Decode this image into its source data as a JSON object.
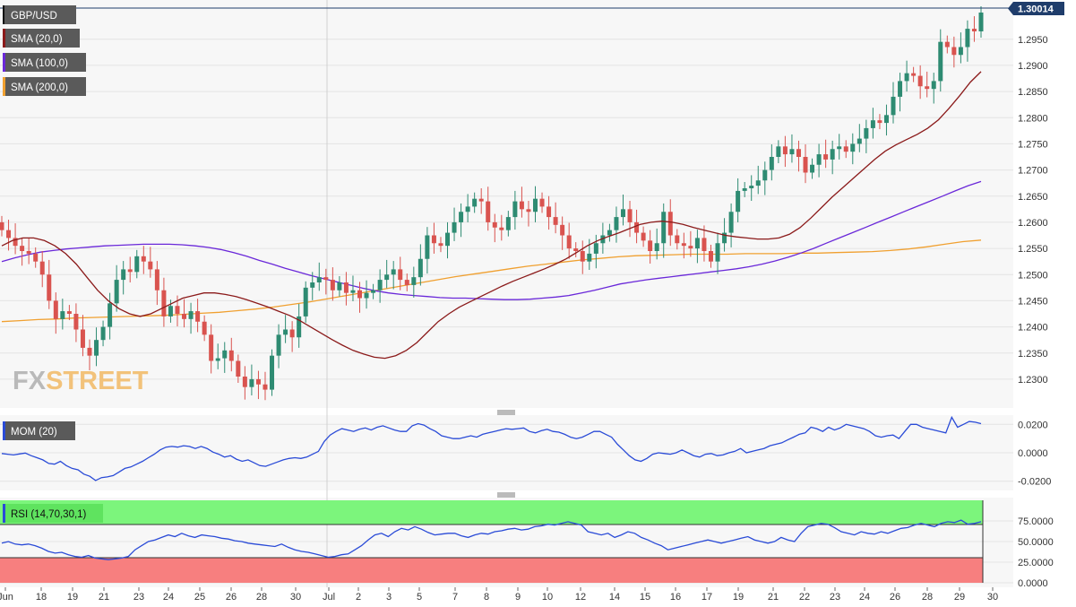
{
  "app": {
    "symbol": "GBP/USD",
    "watermark": {
      "left": "FX",
      "right": "STREET"
    }
  },
  "colors": {
    "bullish": "#2e8b72",
    "bearish": "#d9534f",
    "sma20": "#8b1a1a",
    "sma100": "#6a28d9",
    "sma200": "#f0a030",
    "mom": "#2a4bd7",
    "rsi": "#2a4bd7",
    "rsi_overbought_zone": "#7cf57c",
    "rsi_oversold_zone": "#f77f7f",
    "last_price_tag": "#1f3d6b"
  },
  "indicators": {
    "sma20": {
      "label": "SMA (20,0)",
      "color": "#8b1a1a"
    },
    "sma100": {
      "label": "SMA (100,0)",
      "color": "#6a28d9"
    },
    "sma200": {
      "label": "SMA (200,0)",
      "color": "#f0a030"
    },
    "mom": {
      "label": "MOM (20)",
      "color": "#2a4bd7"
    },
    "rsi": {
      "label": "RSI (14,70,30,1)",
      "color": "#2a4bd7"
    }
  },
  "last_price": "1.30014",
  "chart_data": [
    {
      "type": "candlestick",
      "panel": "price",
      "title": "GBP/USD",
      "ylim": [
        1.2245,
        1.3025
      ],
      "y_ticks": [
        "1.2950",
        "1.2900",
        "1.2850",
        "1.2800",
        "1.2750",
        "1.2700",
        "1.2650",
        "1.2600",
        "1.2550",
        "1.2500",
        "1.2450",
        "1.2400",
        "1.2350",
        "1.2300"
      ],
      "x_ticks": [
        "Jun",
        "18",
        "19",
        "21",
        "23",
        "24",
        "25",
        "26",
        "28",
        "30",
        "Jul",
        "2",
        "3",
        "5",
        "7",
        "8",
        "9",
        "10",
        "12",
        "14",
        "15",
        "16",
        "17",
        "19",
        "21",
        "22",
        "23",
        "24",
        "26",
        "28",
        "29",
        "30"
      ],
      "grid": true,
      "last_value": 1.30014,
      "closes": [
        1.2585,
        1.257,
        1.2555,
        1.2545,
        1.254,
        1.2525,
        1.25,
        1.245,
        1.2415,
        1.243,
        1.2425,
        1.2395,
        1.236,
        1.2345,
        1.2375,
        1.24,
        1.2445,
        1.249,
        1.251,
        1.2505,
        1.2535,
        1.2525,
        1.251,
        1.247,
        1.242,
        1.244,
        1.2425,
        1.2415,
        1.243,
        1.241,
        1.2385,
        1.2335,
        1.234,
        1.2355,
        1.2335,
        1.2305,
        1.2285,
        1.23,
        1.229,
        1.228,
        1.2345,
        1.2385,
        1.2395,
        1.238,
        1.242,
        1.2475,
        1.2485,
        1.2495,
        1.249,
        1.247,
        1.2485,
        1.2465,
        1.247,
        1.2455,
        1.2465,
        1.247,
        1.249,
        1.25,
        1.251,
        1.249,
        1.248,
        1.2495,
        1.253,
        1.2575,
        1.256,
        1.2555,
        1.258,
        1.26,
        1.262,
        1.263,
        1.2645,
        1.264,
        1.26,
        1.259,
        1.2585,
        1.261,
        1.264,
        1.2625,
        1.262,
        1.2645,
        1.263,
        1.261,
        1.2595,
        1.2575,
        1.255,
        1.2545,
        1.2525,
        1.254,
        1.256,
        1.2575,
        1.2585,
        1.261,
        1.2625,
        1.26,
        1.258,
        1.2565,
        1.2545,
        1.256,
        1.262,
        1.2575,
        1.256,
        1.2555,
        1.255,
        1.257,
        1.2545,
        1.2525,
        1.256,
        1.258,
        1.262,
        1.266,
        1.2665,
        1.267,
        1.268,
        1.27,
        1.2725,
        1.2745,
        1.273,
        1.274,
        1.2725,
        1.2695,
        1.271,
        1.273,
        1.272,
        1.274,
        1.2745,
        1.2735,
        1.275,
        1.276,
        1.278,
        1.2795,
        1.279,
        1.2805,
        1.284,
        1.287,
        1.2885,
        1.288,
        1.286,
        1.2855,
        1.287,
        1.2945,
        1.2935,
        1.292,
        1.2935,
        1.297,
        1.2965,
        1.3001
      ],
      "series": [
        {
          "name": "SMA (20,0)",
          "values": [
            1.2555,
            1.2565,
            1.257,
            1.257,
            1.2565,
            1.2555,
            1.254,
            1.252,
            1.2495,
            1.247,
            1.245,
            1.2435,
            1.2425,
            1.242,
            1.2425,
            1.2435,
            1.2445,
            1.2455,
            1.246,
            1.2465,
            1.2465,
            1.2462,
            1.2458,
            1.2452,
            1.2445,
            1.2438,
            1.243,
            1.2422,
            1.2412,
            1.24,
            1.2388,
            1.2376,
            1.2365,
            1.2355,
            1.2348,
            1.2342,
            1.234,
            1.2345,
            1.2355,
            1.237,
            1.239,
            1.241,
            1.2425,
            1.2438,
            1.2448,
            1.2458,
            1.2468,
            1.2478,
            1.2487,
            1.2495,
            1.2503,
            1.2511,
            1.252,
            1.253,
            1.2542,
            1.2555,
            1.2565,
            1.2573,
            1.258,
            1.2588,
            1.2596,
            1.26,
            1.2602,
            1.26,
            1.2596,
            1.259,
            1.2585,
            1.258,
            1.2575,
            1.2572,
            1.257,
            1.2568,
            1.2568,
            1.257,
            1.2577,
            1.259,
            1.2608,
            1.2628,
            1.2648,
            1.2666,
            1.2684,
            1.2702,
            1.272,
            1.2736,
            1.2748,
            1.2758,
            1.2768,
            1.278,
            1.2796,
            1.2818,
            1.2842,
            1.2868,
            1.2888
          ]
        },
        {
          "name": "SMA (100,0)",
          "values": [
            1.2525,
            1.2532,
            1.2538,
            1.2543,
            1.2546,
            1.2549,
            1.2551,
            1.2553,
            1.2555,
            1.2556,
            1.2557,
            1.2558,
            1.2558,
            1.2558,
            1.2557,
            1.2555,
            1.2552,
            1.2548,
            1.2542,
            1.2535,
            1.2527,
            1.252,
            1.2512,
            1.2505,
            1.2498,
            1.2492,
            1.2486,
            1.248,
            1.2474,
            1.2469,
            1.2465,
            1.2462,
            1.246,
            1.2458,
            1.2456,
            1.2455,
            1.2455,
            1.2454,
            1.2453,
            1.2452,
            1.2452,
            1.2453,
            1.2455,
            1.2457,
            1.246,
            1.2465,
            1.247,
            1.2476,
            1.2482,
            1.2486,
            1.249,
            1.2493,
            1.2496,
            1.2499,
            1.2502,
            1.2505,
            1.2508,
            1.2511,
            1.2515,
            1.252,
            1.2526,
            1.2533,
            1.2541,
            1.255,
            1.256,
            1.257,
            1.258,
            1.259,
            1.26,
            1.261,
            1.262,
            1.263,
            1.264,
            1.265,
            1.266,
            1.267,
            1.2678
          ]
        },
        {
          "name": "SMA (200,0)",
          "values": [
            1.241,
            1.2412,
            1.2414,
            1.2415,
            1.2417,
            1.2418,
            1.2419,
            1.242,
            1.2421,
            1.2422,
            1.2424,
            1.2426,
            1.2428,
            1.2431,
            1.2434,
            1.2438,
            1.2443,
            1.2448,
            1.2454,
            1.246,
            1.2466,
            1.2472,
            1.2478,
            1.2484,
            1.249,
            1.2496,
            1.2501,
            1.2506,
            1.2511,
            1.2516,
            1.252,
            1.2524,
            1.2528,
            1.2531,
            1.2534,
            1.2536,
            1.2537,
            1.2538,
            1.2539,
            1.2539,
            1.2539,
            1.254,
            1.254,
            1.254,
            1.2541,
            1.2541,
            1.2542,
            1.2543,
            1.2544,
            1.2546,
            1.2549,
            1.2553,
            1.2558,
            1.2563,
            1.2566
          ]
        }
      ]
    },
    {
      "type": "line",
      "panel": "momentum",
      "series": [
        {
          "name": "MOM (20)",
          "values": [
            -0.0005,
            -0.001,
            -0.0015,
            -0.0008,
            -0.0002,
            -0.002,
            -0.0035,
            -0.005,
            -0.0075,
            -0.008,
            -0.006,
            -0.009,
            -0.011,
            -0.012,
            -0.015,
            -0.0165,
            -0.0195,
            -0.0175,
            -0.017,
            -0.016,
            -0.0135,
            -0.011,
            -0.01,
            -0.008,
            -0.006,
            -0.0035,
            -0.001,
            0.002,
            0.004,
            0.0045,
            0.004,
            0.005,
            0.0045,
            0.003,
            0.0045,
            0.003,
            0.0005,
            -0.001,
            -0.003,
            -0.002,
            -0.0045,
            -0.006,
            -0.005,
            -0.007,
            -0.009,
            -0.0095,
            -0.008,
            -0.0065,
            -0.005,
            -0.004,
            -0.0035,
            -0.004,
            -0.003,
            -0.001,
            0.001,
            0.008,
            0.0125,
            0.015,
            0.017,
            0.016,
            0.015,
            0.0165,
            0.0175,
            0.016,
            0.018,
            0.019,
            0.0175,
            0.016,
            0.015,
            0.015,
            0.019,
            0.0205,
            0.0195,
            0.017,
            0.015,
            0.012,
            0.011,
            0.01,
            0.01,
            0.011,
            0.012,
            0.011,
            0.013,
            0.014,
            0.015,
            0.016,
            0.017,
            0.0165,
            0.017,
            0.0175,
            0.015,
            0.014,
            0.0155,
            0.0165,
            0.015,
            0.0145,
            0.013,
            0.011,
            0.01,
            0.011,
            0.013,
            0.015,
            0.015,
            0.013,
            0.011,
            0.006,
            0.002,
            -0.002,
            -0.005,
            -0.006,
            -0.004,
            -0.001,
            0.0,
            -0.0005,
            -0.001,
            0.0,
            0.002,
            0.0,
            -0.002,
            -0.003,
            -0.001,
            -0.0005,
            -0.002,
            -0.0015,
            0.0,
            0.001,
            0.003,
            0.0,
            0.001,
            0.002,
            0.003,
            0.005,
            0.006,
            0.007,
            0.009,
            0.011,
            0.013,
            0.014,
            0.018,
            0.017,
            0.015,
            0.018,
            0.016,
            0.0175,
            0.02,
            0.019,
            0.018,
            0.017,
            0.015,
            0.012,
            0.011,
            0.012,
            0.0125,
            0.01,
            0.015,
            0.02,
            0.02,
            0.018,
            0.017,
            0.016,
            0.015,
            0.014,
            0.025,
            0.018,
            0.02,
            0.022,
            0.0215,
            0.0205
          ]
        }
      ],
      "ylim": [
        -0.0265,
        0.0265
      ],
      "y_ticks": [
        "0.0200",
        "0.0000",
        "-0.0200"
      ]
    },
    {
      "type": "line",
      "panel": "rsi",
      "series": [
        {
          "name": "RSI (14,70,30,1)",
          "values": [
            48,
            50,
            47,
            46,
            47,
            45,
            42,
            38,
            36,
            37,
            34,
            32,
            31,
            33,
            30,
            29,
            28,
            29,
            30,
            32,
            40,
            45,
            50,
            52,
            55,
            58,
            56,
            60,
            57,
            55,
            58,
            57,
            56,
            54,
            53,
            51,
            50,
            48,
            47,
            46,
            45,
            44,
            47,
            43,
            40,
            38,
            37,
            35,
            33,
            31,
            32,
            34,
            35,
            40,
            45,
            52,
            58,
            60,
            56,
            62,
            66,
            64,
            68,
            65,
            61,
            58,
            59,
            60,
            60,
            57,
            55,
            58,
            60,
            59,
            62,
            63,
            65,
            66,
            64,
            65,
            68,
            69,
            71,
            70,
            72,
            74,
            72,
            70,
            62,
            60,
            58,
            60,
            55,
            58,
            62,
            60,
            55,
            52,
            48,
            45,
            40,
            42,
            44,
            46,
            48,
            50,
            52,
            50,
            48,
            50,
            52,
            54,
            56,
            52,
            50,
            48,
            50,
            55,
            52,
            50,
            60,
            68,
            70,
            72,
            71,
            67,
            62,
            60,
            58,
            62,
            60,
            59,
            62,
            60,
            63,
            66,
            67,
            70,
            72,
            70,
            68,
            72,
            74,
            73,
            76,
            71,
            72,
            74
          ]
        }
      ],
      "ylim": [
        0,
        100
      ],
      "overbought": 70,
      "oversold": 30,
      "y_ticks": [
        "75.0000",
        "50.0000",
        "25.0000",
        "0.0000"
      ]
    }
  ]
}
